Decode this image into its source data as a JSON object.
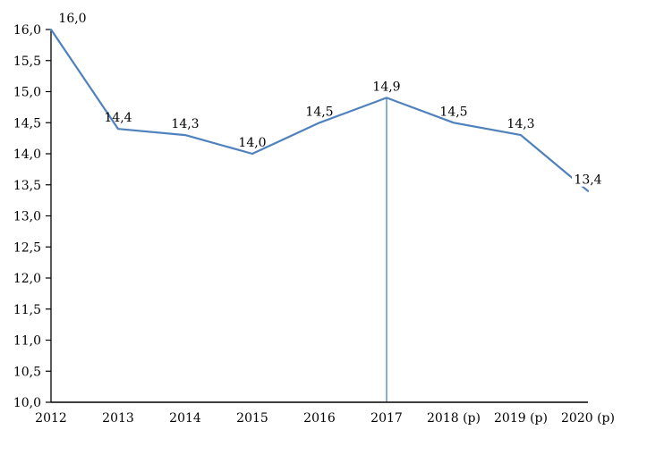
{
  "chart_data": {
    "type": "line",
    "title": "",
    "xlabel": "",
    "ylabel": "",
    "categories": [
      "2012",
      "2013",
      "2014",
      "2015",
      "2016",
      "2017",
      "2018 (p)",
      "2019 (p)",
      "2020 (p)"
    ],
    "series": [
      {
        "name": "value",
        "values": [
          16.0,
          14.4,
          14.3,
          14.0,
          14.5,
          14.9,
          14.5,
          14.3,
          13.4
        ],
        "point_labels": [
          "16,0",
          "14,4",
          "14,3",
          "14,0",
          "14,5",
          "14,9",
          "14,5",
          "14,3",
          "13,4"
        ]
      }
    ],
    "ylim": [
      10.0,
      16.0
    ],
    "y_tick_step": 0.5,
    "y_tick_labels": [
      "10,0",
      "10,5",
      "11,0",
      "11,5",
      "12,0",
      "12,5",
      "13,0",
      "13,5",
      "14,0",
      "14,5",
      "15,0",
      "15,5",
      "16,0"
    ],
    "grid": false,
    "legend_position": "none",
    "annotations": [
      {
        "type": "vline",
        "category": "2017",
        "from_value": 14.9,
        "to_value": 10.0
      }
    ],
    "colors": {
      "line": "#4f81bd",
      "axis": "#000000",
      "text": "#000000",
      "background": "#ffffff"
    }
  }
}
